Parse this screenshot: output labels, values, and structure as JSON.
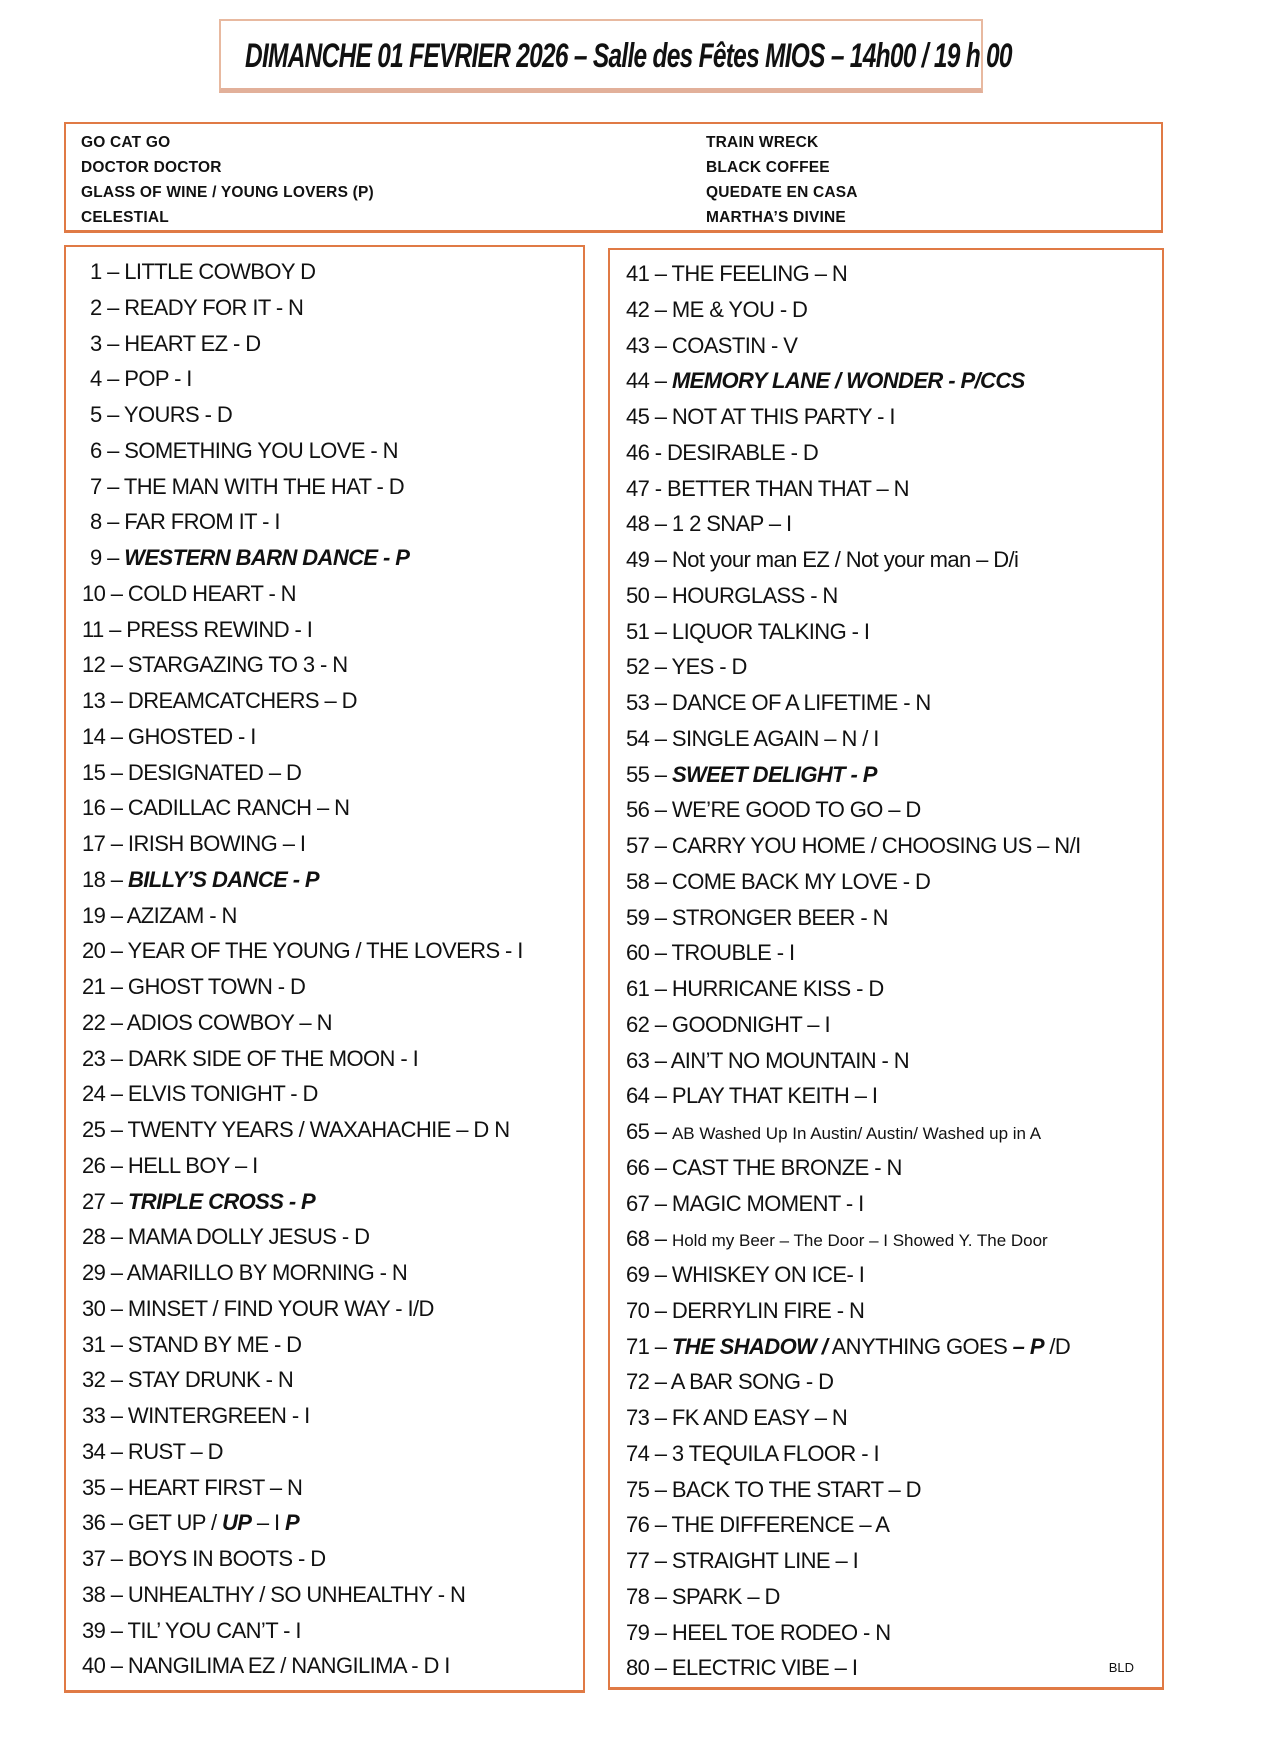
{
  "title": "DIMANCHE 01 FEVRIER 2026 – Salle des Fêtes MIOS – 14h00 / 19 h 00",
  "header_dances": {
    "left": [
      "GO CAT GO",
      "DOCTOR DOCTOR",
      "GLASS OF WINE / YOUNG LOVERS (P)",
      "CELESTIAL"
    ],
    "right": [
      "TRAIN WRECK",
      "BLACK COFFEE",
      "QUEDATE EN CASA",
      "MARTHA’S DIVINE"
    ]
  },
  "accent_color": "#e07a45",
  "items": [
    [
      {
        "t": "1 – LITTLE COWBOY D"
      }
    ],
    [
      {
        "t": "2 – READY FOR IT - N"
      }
    ],
    [
      {
        "t": "3 – HEART EZ - D"
      }
    ],
    [
      {
        "t": "4 – POP - I"
      }
    ],
    [
      {
        "t": "5 – YOURS - D"
      }
    ],
    [
      {
        "t": "6 – SOMETHING YOU LOVE - N"
      }
    ],
    [
      {
        "t": "7 – THE MAN WITH THE HAT - D"
      }
    ],
    [
      {
        "t": "8 – FAR FROM IT - I"
      }
    ],
    [
      {
        "t": "9 – "
      },
      {
        "t": "WESTERN BARN DANCE - P",
        "b": true
      }
    ],
    [
      {
        "t": "10 – COLD HEART - N"
      }
    ],
    [
      {
        "t": "11 – PRESS REWIND - I"
      }
    ],
    [
      {
        "t": "12 – STARGAZING TO 3 - N"
      }
    ],
    [
      {
        "t": "13 – DREAMCATCHERS – D"
      }
    ],
    [
      {
        "t": "14 – GHOSTED - I"
      }
    ],
    [
      {
        "t": "15 – DESIGNATED – D"
      }
    ],
    [
      {
        "t": "16 – CADILLAC RANCH – N"
      }
    ],
    [
      {
        "t": "17 – IRISH BOWING – I"
      }
    ],
    [
      {
        "t": "18 – "
      },
      {
        "t": "BILLY’S DANCE - P",
        "b": true
      }
    ],
    [
      {
        "t": "19 – AZIZAM - N"
      }
    ],
    [
      {
        "t": "20 – YEAR OF THE YOUNG / THE LOVERS - I"
      }
    ],
    [
      {
        "t": "21 – GHOST TOWN - D"
      }
    ],
    [
      {
        "t": "22 – ADIOS COWBOY – N"
      }
    ],
    [
      {
        "t": "23 – DARK SIDE OF THE MOON - I"
      }
    ],
    [
      {
        "t": "24 – ELVIS TONIGHT - D"
      }
    ],
    [
      {
        "t": "25 – TWENTY YEARS / WAXAHACHIE – D N"
      }
    ],
    [
      {
        "t": "26 – HELL BOY – I"
      }
    ],
    [
      {
        "t": "27 – "
      },
      {
        "t": "TRIPLE CROSS - P",
        "b": true
      }
    ],
    [
      {
        "t": "28 – MAMA DOLLY JESUS - D"
      }
    ],
    [
      {
        "t": "29 – AMARILLO BY MORNING - N"
      }
    ],
    [
      {
        "t": "30 – MINSET / FIND YOUR WAY  - I/D"
      }
    ],
    [
      {
        "t": "31 – STAND BY ME - D"
      }
    ],
    [
      {
        "t": "32 – STAY DRUNK - N"
      }
    ],
    [
      {
        "t": "33 – WINTERGREEN - I"
      }
    ],
    [
      {
        "t": "34 – RUST – D"
      }
    ],
    [
      {
        "t": "35 – HEART FIRST – N"
      }
    ],
    [
      {
        "t": "36 – GET UP / "
      },
      {
        "t": "UP",
        "b": true
      },
      {
        "t": " – I "
      },
      {
        "t": "P",
        "b": true
      }
    ],
    [
      {
        "t": "37 – BOYS IN BOOTS - D"
      }
    ],
    [
      {
        "t": "38 – UNHEALTHY / SO UNHEALTHY - N"
      }
    ],
    [
      {
        "t": "39 – TIL’ YOU CAN’T - I"
      }
    ],
    [
      {
        "t": "40 – NANGILIMA EZ / NANGILIMA - D I"
      }
    ],
    [
      {
        "t": "41 – THE FEELING – N"
      }
    ],
    [
      {
        "t": "42 – ME  & YOU - D"
      }
    ],
    [
      {
        "t": "43 – COASTIN - V"
      }
    ],
    [
      {
        "t": "44 – "
      },
      {
        "t": "MEMORY LANE / WONDER  - P/CCS",
        "b": true
      }
    ],
    [
      {
        "t": "45 – NOT AT THIS PARTY - I"
      }
    ],
    [
      {
        "t": "46 - DESIRABLE - D"
      }
    ],
    [
      {
        "t": "47 - BETTER THAN THAT – N"
      }
    ],
    [
      {
        "t": "48 – 1 2 SNAP  – I"
      }
    ],
    [
      {
        "t": "49 – Not your man EZ / Not your man – D/i"
      }
    ],
    [
      {
        "t": "50 – HOURGLASS - N"
      }
    ],
    [
      {
        "t": "51 – LIQUOR TALKING - I"
      }
    ],
    [
      {
        "t": "52 – YES - D"
      }
    ],
    [
      {
        "t": "53 – DANCE OF A LIFETIME - N"
      }
    ],
    [
      {
        "t": "54 – SINGLE AGAIN – N / I"
      }
    ],
    [
      {
        "t": "55 – "
      },
      {
        "t": "SWEET DELIGHT - P",
        "b": true
      }
    ],
    [
      {
        "t": "56 – WE’RE GOOD TO GO – D"
      }
    ],
    [
      {
        "t": "57 – CARRY YOU HOME / CHOOSING US – N/I"
      }
    ],
    [
      {
        "t": "58 – COME BACK MY LOVE - D"
      }
    ],
    [
      {
        "t": "59 – STRONGER BEER - N"
      }
    ],
    [
      {
        "t": "60 – TROUBLE - I"
      }
    ],
    [
      {
        "t": "61 – HURRICANE KISS - D"
      }
    ],
    [
      {
        "t": "62 – GOODNIGHT – I"
      }
    ],
    [
      {
        "t": "63 – AIN’T NO MOUNTAIN - N"
      }
    ],
    [
      {
        "t": "64 – PLAY THAT KEITH – I"
      }
    ],
    [
      {
        "t": "65 – "
      },
      {
        "t": "AB Washed Up In Austin/ Austin/ Washed up in A",
        "s": true
      }
    ],
    [
      {
        "t": "66 – CAST THE BRONZE - N"
      }
    ],
    [
      {
        "t": "67 – MAGIC MOMENT - I"
      }
    ],
    [
      {
        "t": "68 – "
      },
      {
        "t": "Hold my  Beer – The Door – I Showed  Y. The Door",
        "s": true
      }
    ],
    [
      {
        "t": "69 – WHISKEY ON ICE- I"
      }
    ],
    [
      {
        "t": "70 – DERRYLIN FIRE - N"
      }
    ],
    [
      {
        "t": "71 – "
      },
      {
        "t": "THE SHADOW /",
        "b": true
      },
      {
        "t": " ANYTHING GOES "
      },
      {
        "t": "– P",
        "b": true
      },
      {
        "t": " /D"
      }
    ],
    [
      {
        "t": "72 – A BAR SONG - D"
      }
    ],
    [
      {
        "t": "73 – FK AND EASY – N"
      }
    ],
    [
      {
        "t": "74 – 3 TEQUILA FLOOR - I"
      }
    ],
    [
      {
        "t": "75 – BACK TO THE START – D"
      }
    ],
    [
      {
        "t": "76 – THE DIFFERENCE – A"
      }
    ],
    [
      {
        "t": "77 – STRAIGHT LINE – I"
      }
    ],
    [
      {
        "t": "78 – SPARK – D"
      }
    ],
    [
      {
        "t": "79 – HEEL TOE RODEO - N"
      }
    ],
    [
      {
        "t": "80 – ELECTRIC VIBE – I"
      }
    ]
  ],
  "signature": "BLD"
}
